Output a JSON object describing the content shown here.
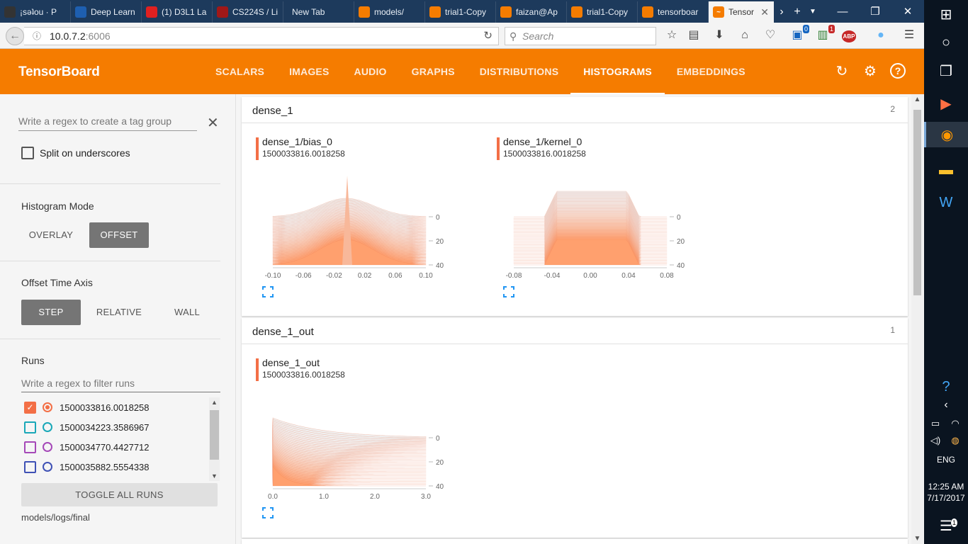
{
  "browser": {
    "tabs": [
      {
        "label": "¡səʇou · P",
        "color": "#333"
      },
      {
        "label": "Deep Learn",
        "color": "#1e5fb0"
      },
      {
        "label": "(1) D3L1 La",
        "color": "#e02020"
      },
      {
        "label": "CS224S / Li",
        "color": "#a01818"
      },
      {
        "label": "New Tab",
        "color": ""
      },
      {
        "label": "models/",
        "color": "#f57c00"
      },
      {
        "label": "trial1-Copy",
        "color": "#f57c00"
      },
      {
        "label": "faizan@Ap",
        "color": "#f57c00"
      },
      {
        "label": "trial1-Copy",
        "color": "#f57c00"
      },
      {
        "label": "tensorboar",
        "color": "#f57c00"
      }
    ],
    "active_tab": {
      "label": "Tensor"
    },
    "url_host": "10.0.7.2",
    "url_rest": ":6006",
    "search_placeholder": "Search",
    "badges": {
      "pocket": "0",
      "ext1": "1",
      "abp": "ABP"
    }
  },
  "header": {
    "title": "TensorBoard",
    "tabs": [
      "SCALARS",
      "IMAGES",
      "AUDIO",
      "GRAPHS",
      "DISTRIBUTIONS",
      "HISTOGRAMS",
      "EMBEDDINGS"
    ],
    "active_tab": "HISTOGRAMS"
  },
  "sidebar": {
    "regex_placeholder": "Write a regex to create a tag group",
    "split_label": "Split on underscores",
    "histogram_mode_label": "Histogram Mode",
    "histogram_modes": [
      "OVERLAY",
      "OFFSET"
    ],
    "histogram_mode_selected": "OFFSET",
    "time_axis_label": "Offset Time Axis",
    "time_axis_modes": [
      "STEP",
      "RELATIVE",
      "WALL"
    ],
    "time_axis_selected": "STEP",
    "runs_label": "Runs",
    "runs_filter_placeholder": "Write a regex to filter runs",
    "runs": [
      {
        "name": "1500033816.0018258",
        "color": "#f36f46",
        "checked": true
      },
      {
        "name": "1500034223.3586967",
        "color": "#19a8b8",
        "checked": false
      },
      {
        "name": "1500034770.4427712",
        "color": "#a548b8",
        "checked": false
      },
      {
        "name": "1500035882.5554338",
        "color": "#3f51b5",
        "checked": false
      },
      {
        "name": "",
        "color": "#2e7d32",
        "checked": false
      }
    ],
    "toggle_all_label": "TOGGLE ALL RUNS",
    "logdir": "models/logs/final"
  },
  "groups": [
    {
      "name": "dense_1",
      "count": "2",
      "charts": [
        {
          "tag": "dense_1/bias_0",
          "run": "1500033816.0018258",
          "x_ticks": [
            "-0.10",
            "-0.06",
            "-0.02",
            "0.02",
            "0.06",
            "0.10"
          ],
          "y_ticks": [
            "0",
            "20",
            "40"
          ],
          "shape": "spike"
        },
        {
          "tag": "dense_1/kernel_0",
          "run": "1500033816.0018258",
          "x_ticks": [
            "-0.08",
            "-0.04",
            "0.00",
            "0.04",
            "0.08"
          ],
          "y_ticks": [
            "0",
            "20",
            "40"
          ],
          "shape": "plateau"
        }
      ]
    },
    {
      "name": "dense_1_out",
      "count": "1",
      "charts": [
        {
          "tag": "dense_1_out",
          "run": "1500033816.0018258",
          "x_ticks": [
            "0.0",
            "1.0",
            "2.0",
            "3.0"
          ],
          "y_ticks": [
            "0",
            "20",
            "40"
          ],
          "shape": "decay"
        }
      ]
    }
  ],
  "taskbar": {
    "time": "12:25 AM",
    "date": "7/17/2017",
    "lang": "ENG",
    "notif_count": "1"
  }
}
